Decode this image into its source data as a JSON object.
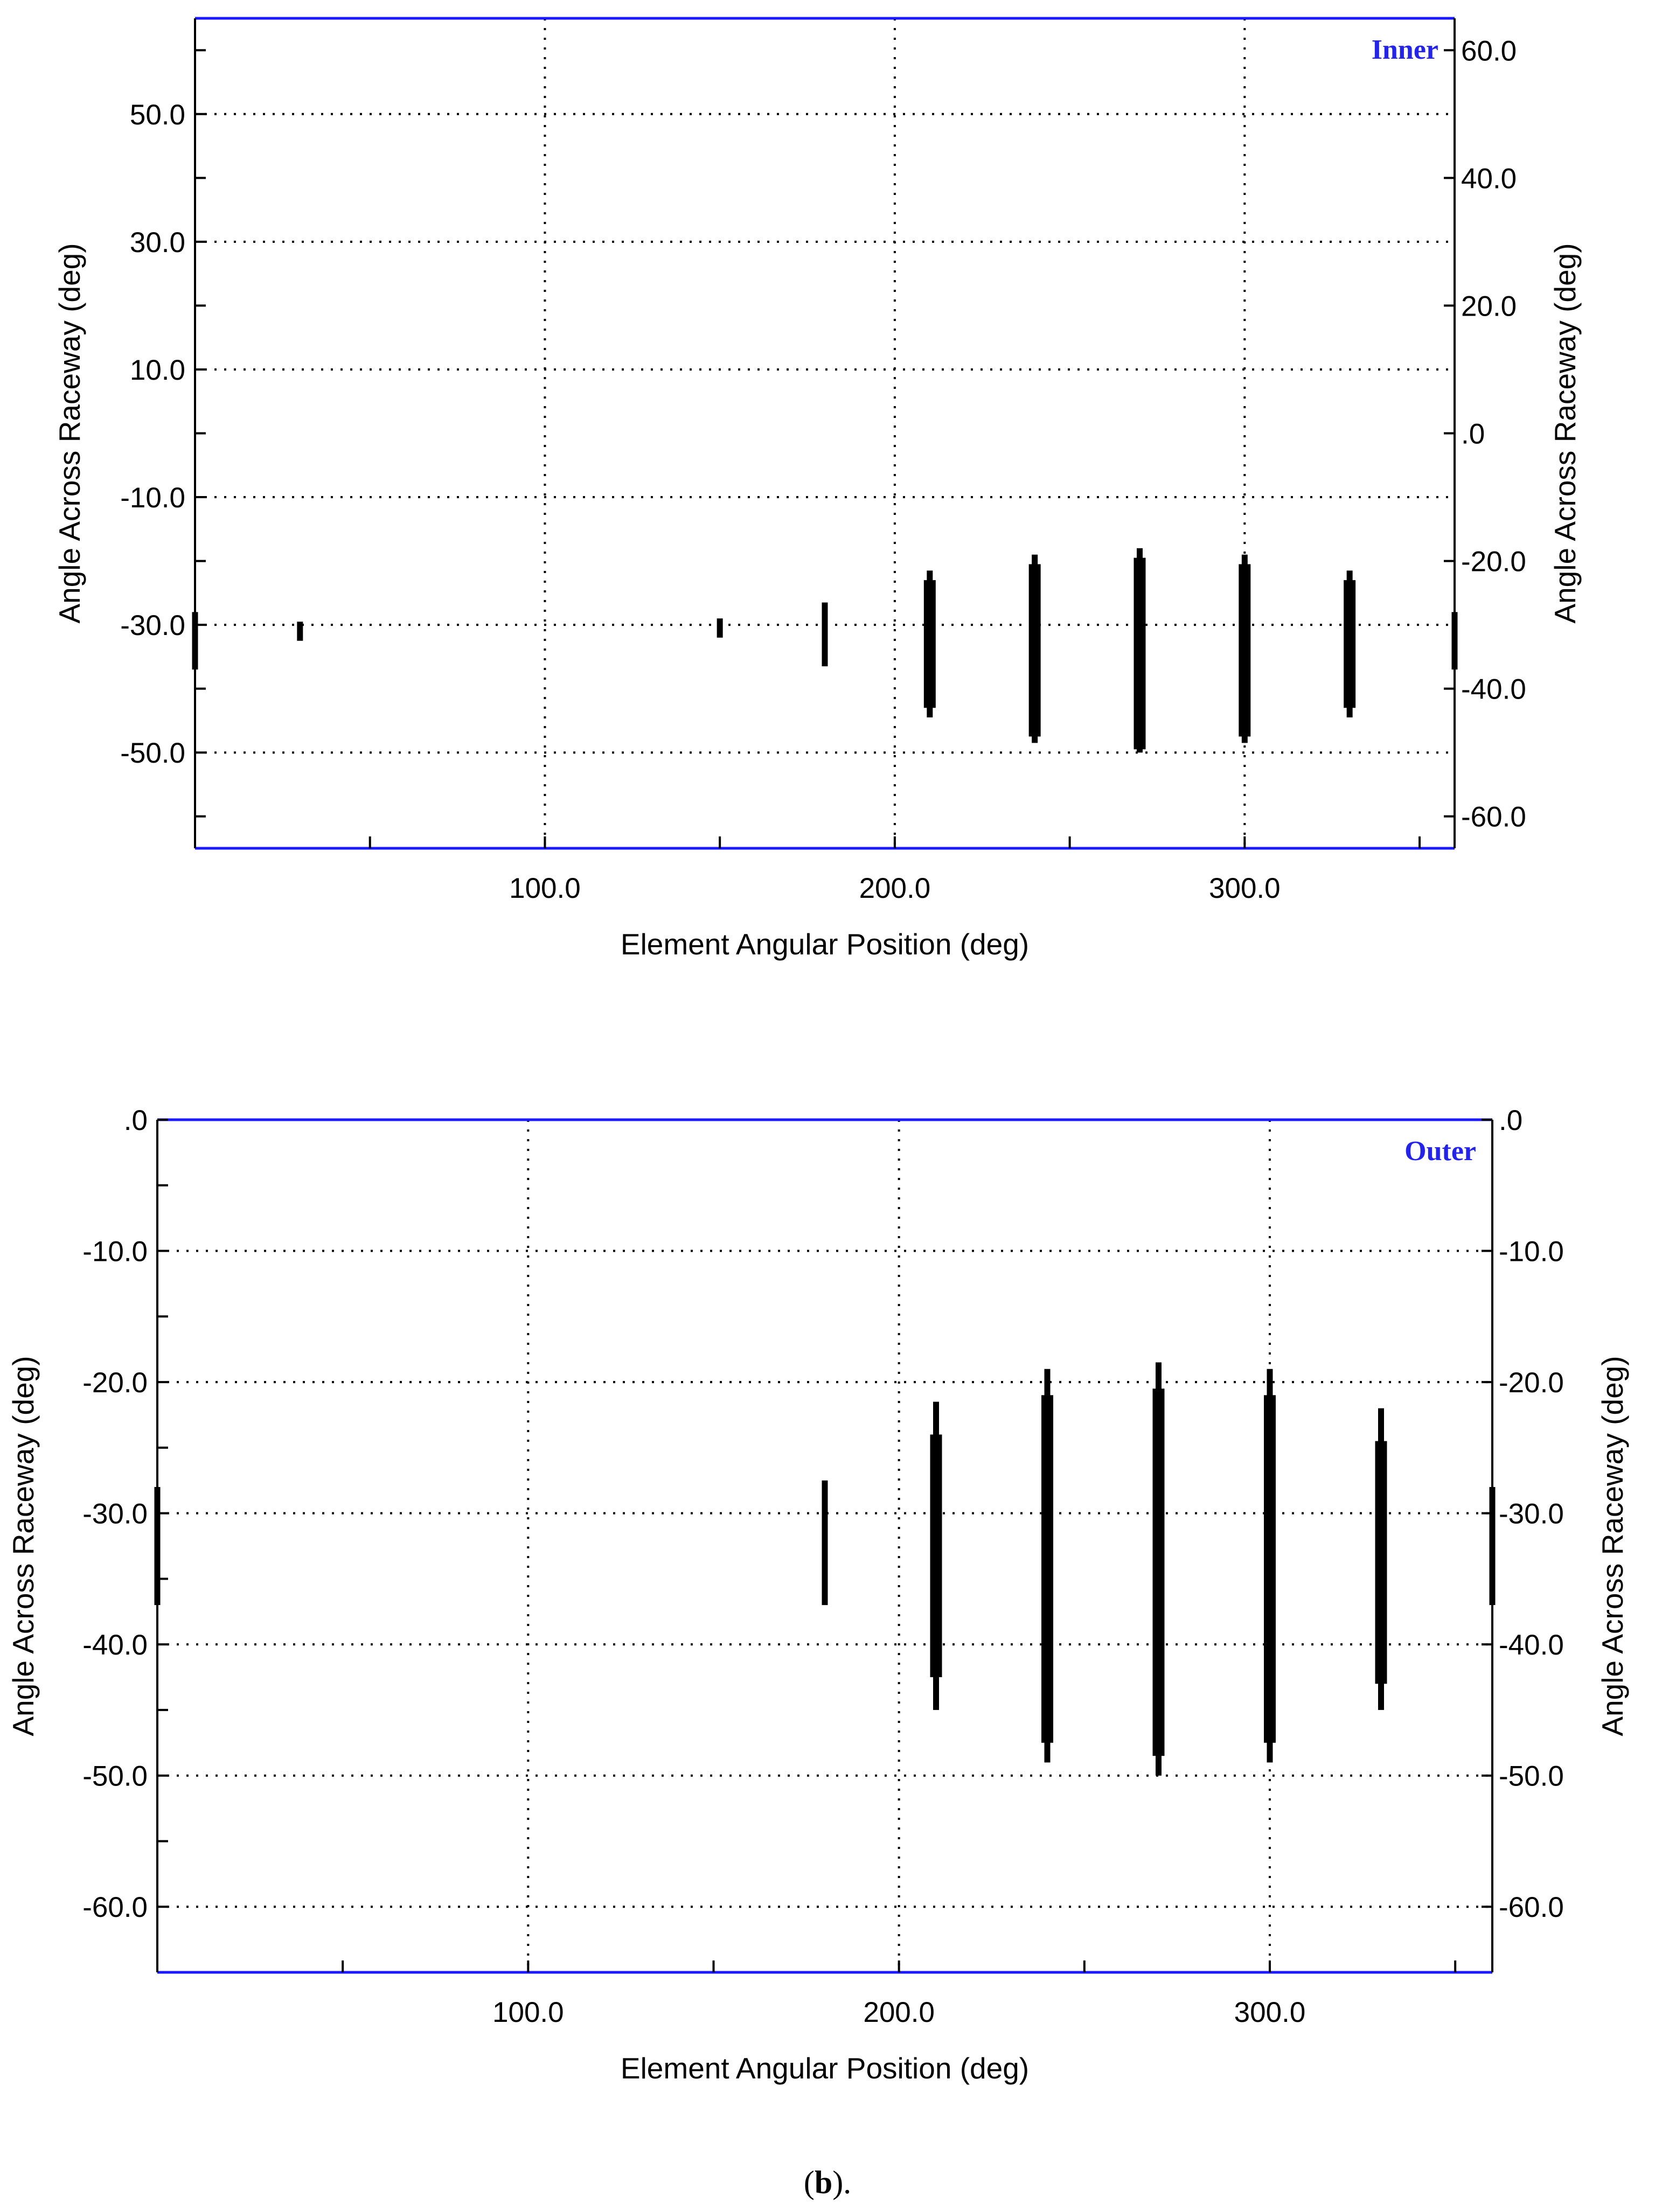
{
  "colors": {
    "frame_blue": "#1a1aff",
    "axis": "#000000",
    "grid": "#000000",
    "bars": "#000000",
    "tag": "#2424e8"
  },
  "caption": {
    "open": "(",
    "letter": "b",
    "close": ")."
  },
  "chart_data": [
    {
      "type": "range-bar",
      "panel": "Inner",
      "tag": "Inner",
      "xlabel": "Element Angular Position (deg)",
      "ylabel_left": "Angle Across Raceway (deg)",
      "ylabel_right": "Angle Across Raceway (deg)",
      "xlim": [
        0,
        360
      ],
      "ylim_left": [
        -65,
        65
      ],
      "ylim_right": [
        -65,
        65
      ],
      "x_ticks": [
        100,
        200,
        300
      ],
      "x_tick_labels": [
        "100.0",
        "200.0",
        "300.0"
      ],
      "x_minor_ticks": [
        50,
        150,
        250,
        350
      ],
      "left_ticks": [
        50,
        30,
        10,
        -10,
        -30,
        -50
      ],
      "left_tick_labels": [
        "50.0",
        "30.0",
        "10.0",
        "-10.0",
        "-30.0",
        "-50.0"
      ],
      "left_minor_ticks": [
        60,
        40,
        20,
        0,
        -20,
        -40,
        -60
      ],
      "right_ticks": [
        60,
        40,
        20,
        0,
        -20,
        -40,
        -60
      ],
      "right_tick_labels": [
        "60.0",
        "40.0",
        "20.0",
        ".0",
        "-20.0",
        "-40.0",
        "-60.0"
      ],
      "grid_x": [
        100,
        200,
        300
      ],
      "grid_y": [
        50,
        30,
        10,
        -10,
        -30,
        -50
      ],
      "ranges": [
        {
          "x": 0,
          "outer": [
            -37,
            -28
          ],
          "inner": null
        },
        {
          "x": 30,
          "outer": [
            -32.5,
            -29.5
          ],
          "inner": null
        },
        {
          "x": 150,
          "outer": [
            -32,
            -29
          ],
          "inner": null
        },
        {
          "x": 180,
          "outer": [
            -36.5,
            -26.5
          ],
          "inner": null
        },
        {
          "x": 210,
          "outer": [
            -44.5,
            -21.5
          ],
          "inner": [
            -43,
            -23
          ]
        },
        {
          "x": 240,
          "outer": [
            -48.5,
            -19
          ],
          "inner": [
            -47.5,
            -20.5
          ]
        },
        {
          "x": 270,
          "outer": [
            -50,
            -18
          ],
          "inner": [
            -49.5,
            -19.5
          ]
        },
        {
          "x": 300,
          "outer": [
            -48.5,
            -19
          ],
          "inner": [
            -47.5,
            -20.5
          ]
        },
        {
          "x": 330,
          "outer": [
            -44.5,
            -21.5
          ],
          "inner": [
            -43,
            -23
          ]
        },
        {
          "x": 360,
          "outer": [
            -37,
            -28
          ],
          "inner": null
        }
      ]
    },
    {
      "type": "range-bar",
      "panel": "Outer",
      "tag": "Outer",
      "xlabel": "Element Angular Position (deg)",
      "ylabel_left": "Angle Across Raceway (deg)",
      "ylabel_right": "Angle Across Raceway (deg)",
      "xlim": [
        0,
        360
      ],
      "ylim_left": [
        -65,
        0
      ],
      "ylim_right": [
        -65,
        0
      ],
      "x_ticks": [
        100,
        200,
        300
      ],
      "x_tick_labels": [
        "100.0",
        "200.0",
        "300.0"
      ],
      "x_minor_ticks": [
        50,
        150,
        250,
        350
      ],
      "left_ticks": [
        0,
        -10,
        -20,
        -30,
        -40,
        -50,
        -60
      ],
      "left_tick_labels": [
        ".0",
        "-10.0",
        "-20.0",
        "-30.0",
        "-40.0",
        "-50.0",
        "-60.0"
      ],
      "left_minor_ticks": [
        -5,
        -15,
        -25,
        -35,
        -45,
        -55
      ],
      "right_ticks": [
        0,
        -10,
        -20,
        -30,
        -40,
        -50,
        -60
      ],
      "right_tick_labels": [
        ".0",
        "-10.0",
        "-20.0",
        "-30.0",
        "-40.0",
        "-50.0",
        "-60.0"
      ],
      "grid_x": [
        100,
        200,
        300
      ],
      "grid_y": [
        -10,
        -20,
        -30,
        -40,
        -50,
        -60
      ],
      "ranges": [
        {
          "x": 0,
          "outer": [
            -37,
            -28
          ],
          "inner": null
        },
        {
          "x": 180,
          "outer": [
            -37,
            -27.5
          ],
          "inner": null
        },
        {
          "x": 210,
          "outer": [
            -45,
            -21.5
          ],
          "inner": [
            -42.5,
            -24
          ]
        },
        {
          "x": 240,
          "outer": [
            -49,
            -19
          ],
          "inner": [
            -47.5,
            -21
          ]
        },
        {
          "x": 270,
          "outer": [
            -50,
            -18.5
          ],
          "inner": [
            -48.5,
            -20.5
          ]
        },
        {
          "x": 300,
          "outer": [
            -49,
            -19
          ],
          "inner": [
            -47.5,
            -21
          ]
        },
        {
          "x": 330,
          "outer": [
            -45,
            -22
          ],
          "inner": [
            -43,
            -24.5
          ]
        },
        {
          "x": 360,
          "outer": [
            -37,
            -28
          ],
          "inner": null
        }
      ]
    }
  ]
}
